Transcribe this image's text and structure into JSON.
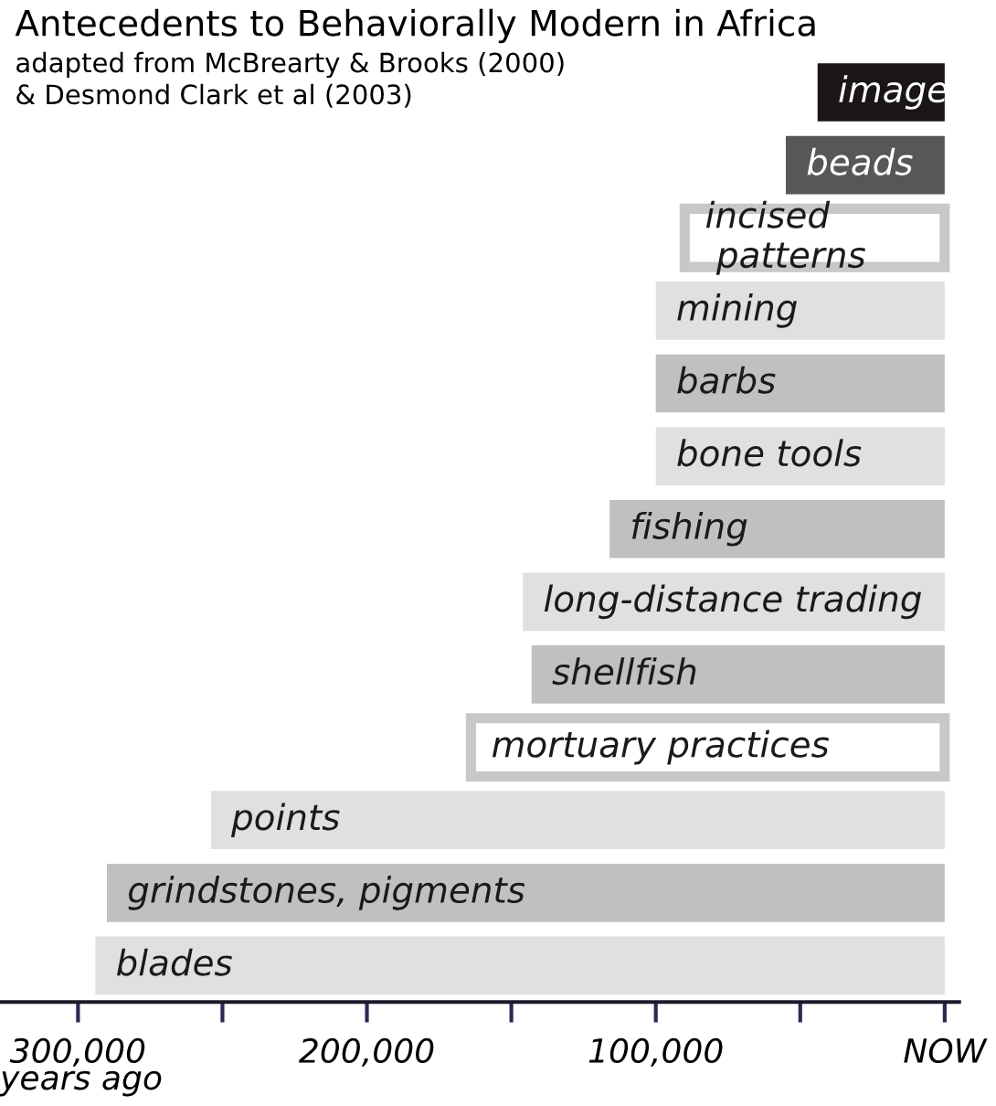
{
  "chart_data": {
    "type": "bar",
    "orientation": "horizontal",
    "title": "Antecedents to Behaviorally Modern in Africa",
    "subtitle": "adapted from McBrearty & Brooks (2000)\n& Desmond Clark et al (2003)",
    "xlabel": "years ago",
    "categories": [
      "image",
      "beads",
      "incised\n patterns",
      "mining",
      "barbs",
      "bone tools",
      "fishing",
      "long-distance trading",
      "shellfish",
      "mortuary practices",
      "points",
      "grindstones, pigments",
      "blades"
    ],
    "base": [
      0,
      0,
      0,
      0,
      0,
      0,
      0,
      0,
      0,
      0,
      0,
      0,
      0
    ],
    "values": [
      44000,
      55000,
      90000,
      100000,
      100000,
      100000,
      116000,
      146000,
      143000,
      164000,
      254000,
      290000,
      294000
    ],
    "colors": [
      "#1a1616",
      "#575757",
      "#ffffff",
      "#e0e0e0",
      "#c0c0c0",
      "#e0e0e0",
      "#c0c0c0",
      "#e0e0e0",
      "#c0c0c0",
      "#ffffff",
      "#e0e0e0",
      "#c0c0c0",
      "#e0e0e0"
    ],
    "xlim": [
      327000,
      -5000
    ],
    "xticks": [
      {
        "value": 300000,
        "label": "300,000"
      },
      {
        "value": 250000,
        "label": null
      },
      {
        "value": 200000,
        "label": "200,000"
      },
      {
        "value": 150000,
        "label": null
      },
      {
        "value": 100000,
        "label": "100,000"
      },
      {
        "value": 50000,
        "label": null
      },
      {
        "value": 0,
        "label": "NOW"
      }
    ],
    "tick_labels": "x",
    "grid": false,
    "legend": false
  }
}
